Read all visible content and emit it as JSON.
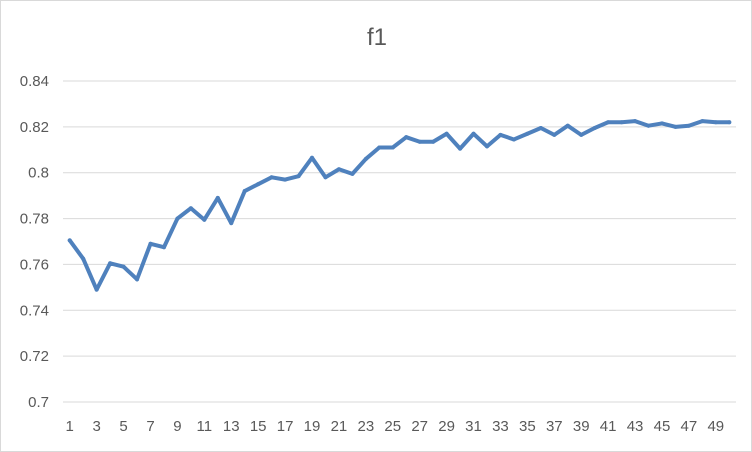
{
  "chart_data": {
    "type": "line",
    "title": "f1",
    "xlabel": "",
    "ylabel": "",
    "x": [
      1,
      2,
      3,
      4,
      5,
      6,
      7,
      8,
      9,
      10,
      11,
      12,
      13,
      14,
      15,
      16,
      17,
      18,
      19,
      20,
      21,
      22,
      23,
      24,
      25,
      26,
      27,
      28,
      29,
      30,
      31,
      32,
      33,
      34,
      35,
      36,
      37,
      38,
      39,
      40,
      41,
      42,
      43,
      44,
      45,
      46,
      47,
      48,
      49,
      50
    ],
    "x_tick_labels": [
      "1",
      "3",
      "5",
      "7",
      "9",
      "11",
      "13",
      "15",
      "17",
      "19",
      "21",
      "23",
      "25",
      "27",
      "29",
      "31",
      "33",
      "35",
      "37",
      "39",
      "41",
      "43",
      "45",
      "47",
      "49"
    ],
    "y_tick_labels": [
      "0.7",
      "0.72",
      "0.74",
      "0.76",
      "0.78",
      "0.8",
      "0.82",
      "0.84"
    ],
    "ylim": [
      0.7,
      0.84
    ],
    "y_ticks": [
      0.7,
      0.72,
      0.74,
      0.76,
      0.78,
      0.8,
      0.82,
      0.84
    ],
    "grid": true,
    "legend": "none",
    "series": [
      {
        "color": "#4f81bd",
        "values": [
          0.7705,
          0.7625,
          0.749,
          0.7605,
          0.759,
          0.7535,
          0.769,
          0.7675,
          0.78,
          0.7845,
          0.7795,
          0.789,
          0.778,
          0.792,
          0.795,
          0.798,
          0.797,
          0.7985,
          0.8065,
          0.798,
          0.8015,
          0.7995,
          0.806,
          0.811,
          0.811,
          0.8155,
          0.8135,
          0.8135,
          0.817,
          0.8105,
          0.817,
          0.8115,
          0.8165,
          0.8145,
          0.817,
          0.8195,
          0.8165,
          0.8205,
          0.8165,
          0.8195,
          0.822,
          0.822,
          0.8225,
          0.8205,
          0.8215,
          0.82,
          0.8205,
          0.8225,
          0.822,
          0.822
        ]
      }
    ]
  }
}
